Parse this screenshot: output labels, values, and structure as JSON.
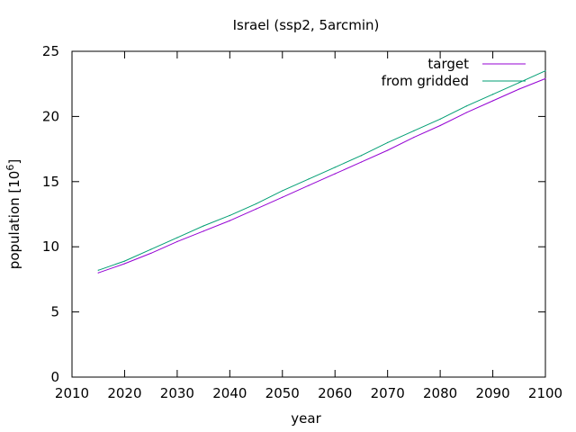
{
  "chart_data": {
    "type": "line",
    "title": "Israel (ssp2, 5arcmin)",
    "xlabel": "year",
    "ylabel_base": "population [10",
    "ylabel_exp": "6",
    "ylabel_close": "]",
    "xlim": [
      2010,
      2100
    ],
    "ylim": [
      0,
      25
    ],
    "xticks": [
      2010,
      2020,
      2030,
      2040,
      2050,
      2060,
      2070,
      2080,
      2090,
      2100
    ],
    "yticks": [
      0,
      5,
      10,
      15,
      20,
      25
    ],
    "grid": false,
    "legend_position": "top-right",
    "x": [
      2015,
      2020,
      2025,
      2030,
      2035,
      2040,
      2045,
      2050,
      2055,
      2060,
      2065,
      2070,
      2075,
      2080,
      2085,
      2090,
      2095,
      2100
    ],
    "series": [
      {
        "name": "target",
        "color": "#9400d3",
        "values": [
          8.0,
          8.7,
          9.5,
          10.4,
          11.2,
          12.0,
          12.9,
          13.8,
          14.7,
          15.6,
          16.5,
          17.4,
          18.4,
          19.3,
          20.3,
          21.2,
          22.1,
          22.9
        ]
      },
      {
        "name": "from gridded",
        "color": "#009e73",
        "values": [
          8.2,
          8.9,
          9.8,
          10.7,
          11.6,
          12.4,
          13.3,
          14.3,
          15.2,
          16.1,
          17.0,
          18.0,
          18.9,
          19.8,
          20.8,
          21.7,
          22.6,
          23.5
        ]
      }
    ]
  }
}
